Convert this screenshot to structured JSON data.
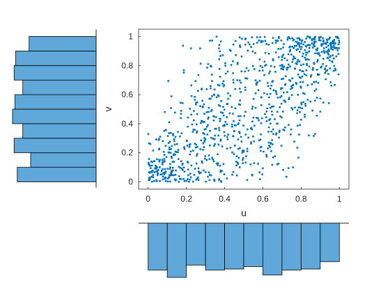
{
  "chart_data": [
    {
      "type": "scatter",
      "xlabel": "u",
      "ylabel": "v",
      "xlim": [
        -0.05,
        1.05
      ],
      "ylim": [
        -0.05,
        1.05
      ],
      "xticks": [
        "0",
        "0.2",
        "0.4",
        "0.6",
        "0.8",
        "1"
      ],
      "yticks": [
        "0",
        "0.2",
        "0.4",
        "0.6",
        "0.8",
        "1"
      ],
      "grid": false,
      "marker": "dot",
      "color": "#0072BD",
      "n_points": 1000,
      "correlation": "positive",
      "note": "points concentrate near (0,0) and (1,1)"
    },
    {
      "type": "bar",
      "role": "marginal histogram of u (drawn downward below scatter)",
      "bins": [
        [
          0,
          0.1
        ],
        [
          0.1,
          0.2
        ],
        [
          0.2,
          0.3
        ],
        [
          0.3,
          0.4
        ],
        [
          0.4,
          0.5
        ],
        [
          0.5,
          0.6
        ],
        [
          0.6,
          0.7
        ],
        [
          0.7,
          0.8
        ],
        [
          0.8,
          0.9
        ],
        [
          0.9,
          1.0
        ]
      ],
      "values": [
        0.95,
        1.1,
        0.85,
        0.95,
        0.93,
        0.88,
        1.05,
        0.95,
        0.93,
        0.78
      ],
      "color": "#5fa8d9",
      "edge_color": "#000000"
    },
    {
      "type": "bar",
      "role": "marginal histogram of v (drawn leftward beside scatter)",
      "bins": [
        [
          0,
          0.1
        ],
        [
          0.1,
          0.2
        ],
        [
          0.2,
          0.3
        ],
        [
          0.3,
          0.4
        ],
        [
          0.4,
          0.5
        ],
        [
          0.5,
          0.6
        ],
        [
          0.6,
          0.7
        ],
        [
          0.7,
          0.8
        ],
        [
          0.8,
          0.9
        ],
        [
          0.9,
          1.0
        ]
      ],
      "values": [
        1.0,
        0.83,
        1.04,
        0.93,
        1.06,
        1.03,
        0.93,
        1.04,
        1.02,
        0.85
      ],
      "color": "#5fa8d9",
      "edge_color": "#000000"
    }
  ]
}
